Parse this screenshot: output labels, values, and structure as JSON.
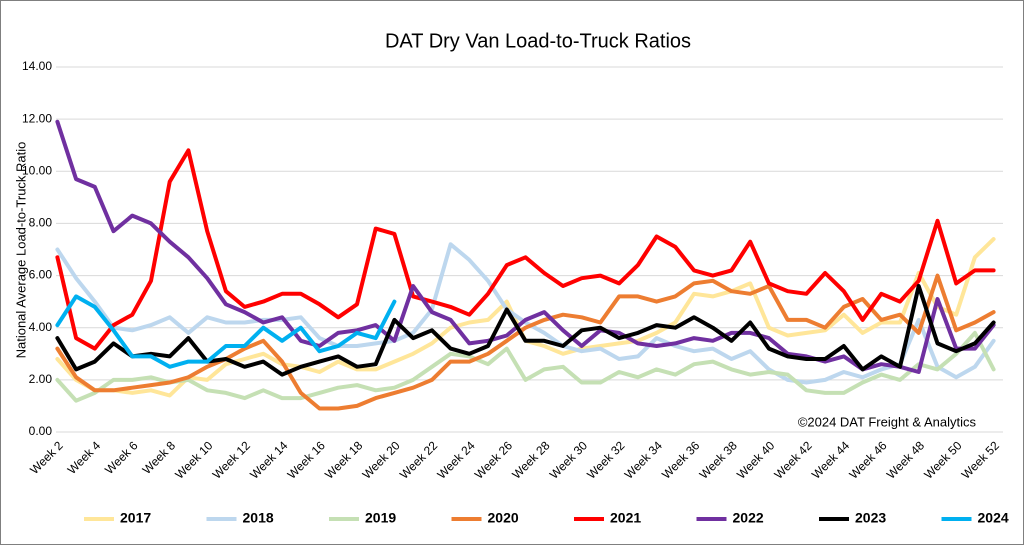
{
  "chart_data": {
    "type": "line",
    "title": "DAT Dry Van Load-to-Truck Ratios",
    "y_label": "National Average Load-to-Truck Ratio",
    "annotation": "©2024 DAT Freight & Analytics",
    "categories": [
      "Week 2",
      null,
      "Week 4",
      null,
      "Week 6",
      null,
      "Week 8",
      null,
      "Week 10",
      null,
      "Week 12",
      null,
      "Week 14",
      null,
      "Week 16",
      null,
      "Week 18",
      null,
      "Week 20",
      null,
      "Week 22",
      null,
      "Week 24",
      null,
      "Week 26",
      null,
      "Week 28",
      null,
      "Week 30",
      null,
      "Week 32",
      null,
      "Week 34",
      null,
      "Week 36",
      null,
      "Week 38",
      null,
      "Week 40",
      null,
      "Week 42",
      null,
      "Week 44",
      null,
      "Week 46",
      null,
      "Week 48",
      null,
      "Week 50",
      null,
      "Week 52"
    ],
    "ylim": [
      0,
      14
    ],
    "yticks": [
      {
        "value": 0,
        "label": "0.00"
      },
      {
        "value": 2,
        "label": "2.00"
      },
      {
        "value": 4,
        "label": "4.00"
      },
      {
        "value": 6,
        "label": "6.00"
      },
      {
        "value": 8,
        "label": "8.00"
      },
      {
        "value": 10,
        "label": "10.00"
      },
      {
        "value": 12,
        "label": "12.00"
      },
      {
        "value": 14,
        "label": "14.00"
      }
    ],
    "grid": true,
    "legend": "bottom",
    "series": [
      {
        "name": "2017",
        "color": "#ffe699",
        "values": [
          2.8,
          2.0,
          1.6,
          1.6,
          1.5,
          1.6,
          1.4,
          2.1,
          2.0,
          2.6,
          2.8,
          3.0,
          2.6,
          2.5,
          2.3,
          2.7,
          2.4,
          2.4,
          2.7,
          3.0,
          3.4,
          4.0,
          4.2,
          4.3,
          5.0,
          3.5,
          3.3,
          3.0,
          3.2,
          3.3,
          3.4,
          3.5,
          3.8,
          4.2,
          5.3,
          5.2,
          5.4,
          5.7,
          4.0,
          3.7,
          3.8,
          3.9,
          4.5,
          3.8,
          4.2,
          4.2,
          6.1,
          4.8,
          4.5,
          6.7,
          7.4
        ]
      },
      {
        "name": "2018",
        "color": "#bdd7ee",
        "values": [
          7.0,
          5.9,
          5.0,
          4.0,
          3.9,
          4.1,
          4.4,
          3.8,
          4.4,
          4.2,
          4.2,
          4.3,
          4.3,
          4.4,
          3.6,
          3.3,
          3.3,
          3.4,
          3.5,
          3.8,
          4.7,
          7.2,
          6.6,
          5.8,
          4.7,
          4.2,
          3.8,
          3.3,
          3.1,
          3.2,
          2.8,
          2.9,
          3.6,
          3.3,
          3.1,
          3.2,
          2.8,
          3.1,
          2.4,
          2.0,
          1.9,
          2.0,
          2.3,
          2.1,
          2.4,
          2.6,
          4.3,
          2.5,
          2.1,
          2.5,
          3.5
        ]
      },
      {
        "name": "2019",
        "color": "#c5e0b4",
        "values": [
          2.0,
          1.2,
          1.5,
          2.0,
          2.0,
          2.1,
          1.9,
          2.0,
          1.6,
          1.5,
          1.3,
          1.6,
          1.3,
          1.3,
          1.5,
          1.7,
          1.8,
          1.6,
          1.7,
          2.0,
          2.5,
          3.0,
          2.9,
          2.6,
          3.2,
          2.0,
          2.4,
          2.5,
          1.9,
          1.9,
          2.3,
          2.1,
          2.4,
          2.2,
          2.6,
          2.7,
          2.4,
          2.2,
          2.3,
          2.2,
          1.6,
          1.5,
          1.5,
          1.9,
          2.2,
          2.0,
          2.6,
          2.4,
          3.0,
          3.8,
          2.4
        ]
      },
      {
        "name": "2020",
        "color": "#ed7d31",
        "values": [
          3.2,
          2.1,
          1.6,
          1.6,
          1.7,
          1.8,
          1.9,
          2.1,
          2.5,
          2.8,
          3.2,
          3.5,
          2.7,
          1.5,
          0.9,
          0.9,
          1.0,
          1.3,
          1.5,
          1.7,
          2.0,
          2.7,
          2.7,
          3.0,
          3.5,
          4.0,
          4.3,
          4.5,
          4.4,
          4.2,
          5.2,
          5.2,
          5.0,
          5.2,
          5.7,
          5.8,
          5.4,
          5.3,
          5.6,
          4.3,
          4.3,
          4.0,
          4.8,
          5.1,
          4.3,
          4.5,
          3.8,
          6.0,
          3.9,
          4.2,
          4.6
        ]
      },
      {
        "name": "2021",
        "color": "#ff0000",
        "values": [
          6.7,
          3.6,
          3.2,
          4.1,
          4.5,
          5.8,
          9.6,
          10.8,
          7.7,
          5.4,
          4.8,
          5.0,
          5.3,
          5.3,
          4.9,
          4.4,
          4.9,
          7.8,
          7.6,
          5.2,
          5.0,
          4.8,
          4.5,
          5.3,
          6.4,
          6.7,
          6.1,
          5.6,
          5.9,
          6.0,
          5.7,
          6.4,
          7.5,
          7.1,
          6.2,
          6.0,
          6.2,
          7.3,
          5.7,
          5.4,
          5.3,
          6.1,
          5.4,
          4.3,
          5.3,
          5.0,
          5.8,
          8.1,
          5.7,
          6.2,
          6.2
        ]
      },
      {
        "name": "2022",
        "color": "#7030a0",
        "values": [
          11.9,
          9.7,
          9.4,
          7.7,
          8.3,
          8.0,
          7.3,
          6.7,
          5.9,
          4.9,
          4.6,
          4.2,
          4.4,
          3.5,
          3.3,
          3.8,
          3.9,
          4.1,
          3.5,
          5.6,
          4.6,
          4.3,
          3.4,
          3.5,
          3.7,
          4.3,
          4.6,
          3.9,
          3.3,
          3.9,
          3.8,
          3.4,
          3.3,
          3.4,
          3.6,
          3.5,
          3.8,
          3.8,
          3.6,
          3.0,
          2.9,
          2.7,
          2.9,
          2.4,
          2.6,
          2.5,
          2.3,
          5.1,
          3.2,
          3.2,
          4.1
        ]
      },
      {
        "name": "2023",
        "color": "#000000",
        "values": [
          3.6,
          2.4,
          2.7,
          3.4,
          2.9,
          3.0,
          2.9,
          3.6,
          2.7,
          2.8,
          2.5,
          2.7,
          2.2,
          2.5,
          2.7,
          2.9,
          2.5,
          2.6,
          4.3,
          3.6,
          3.9,
          3.2,
          3.0,
          3.3,
          4.7,
          3.5,
          3.5,
          3.3,
          3.9,
          4.0,
          3.6,
          3.8,
          4.1,
          4.0,
          4.4,
          4.0,
          3.5,
          4.2,
          3.2,
          2.9,
          2.8,
          2.8,
          3.3,
          2.4,
          2.9,
          2.5,
          5.6,
          3.4,
          3.1,
          3.4,
          4.2
        ]
      },
      {
        "name": "2024",
        "color": "#00b0f0",
        "values": [
          4.1,
          5.2,
          4.8,
          3.9,
          2.9,
          2.9,
          2.5,
          2.7,
          2.7,
          3.3,
          3.3,
          4.0,
          3.5,
          4.0,
          3.1,
          3.3,
          3.8,
          3.6,
          5.0,
          null,
          null,
          null,
          null,
          null,
          null,
          null,
          null,
          null,
          null,
          null,
          null,
          null,
          null,
          null,
          null,
          null,
          null,
          null,
          null,
          null,
          null,
          null,
          null,
          null,
          null,
          null,
          null,
          null,
          null,
          null,
          null
        ]
      }
    ]
  }
}
